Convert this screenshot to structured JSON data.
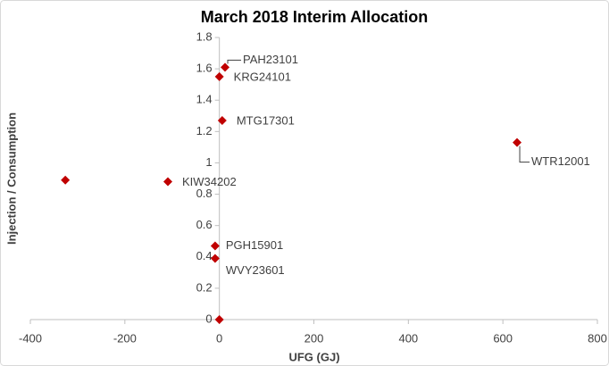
{
  "chart_data": {
    "type": "scatter",
    "title": "March 2018 Interim Allocation",
    "x_label": "UFG (GJ)",
    "y_label": "Injection / Consumption",
    "series": [
      {
        "color": "#c00000",
        "labels": [
          "PAH23101",
          "KRG24101",
          "MTG17301",
          "WTR12001",
          null,
          "KIW34202",
          "PGH15901",
          "WVY23601",
          null
        ],
        "x": [
          12,
          0,
          6,
          630,
          -326,
          -109,
          -9,
          -9,
          0
        ],
        "values": [
          1.61,
          1.55,
          1.27,
          1.13,
          0.89,
          0.88,
          0.47,
          0.39,
          0
        ]
      }
    ],
    "xlim": [
      -400,
      800
    ],
    "xticks": [
      -400,
      -200,
      0,
      200,
      400,
      600,
      800
    ],
    "ylim": [
      0,
      1.8
    ],
    "yticks": [
      0,
      0.2,
      0.4,
      0.6,
      0.8,
      1,
      1.2,
      1.4,
      1.6,
      1.8
    ],
    "grid": false
  }
}
